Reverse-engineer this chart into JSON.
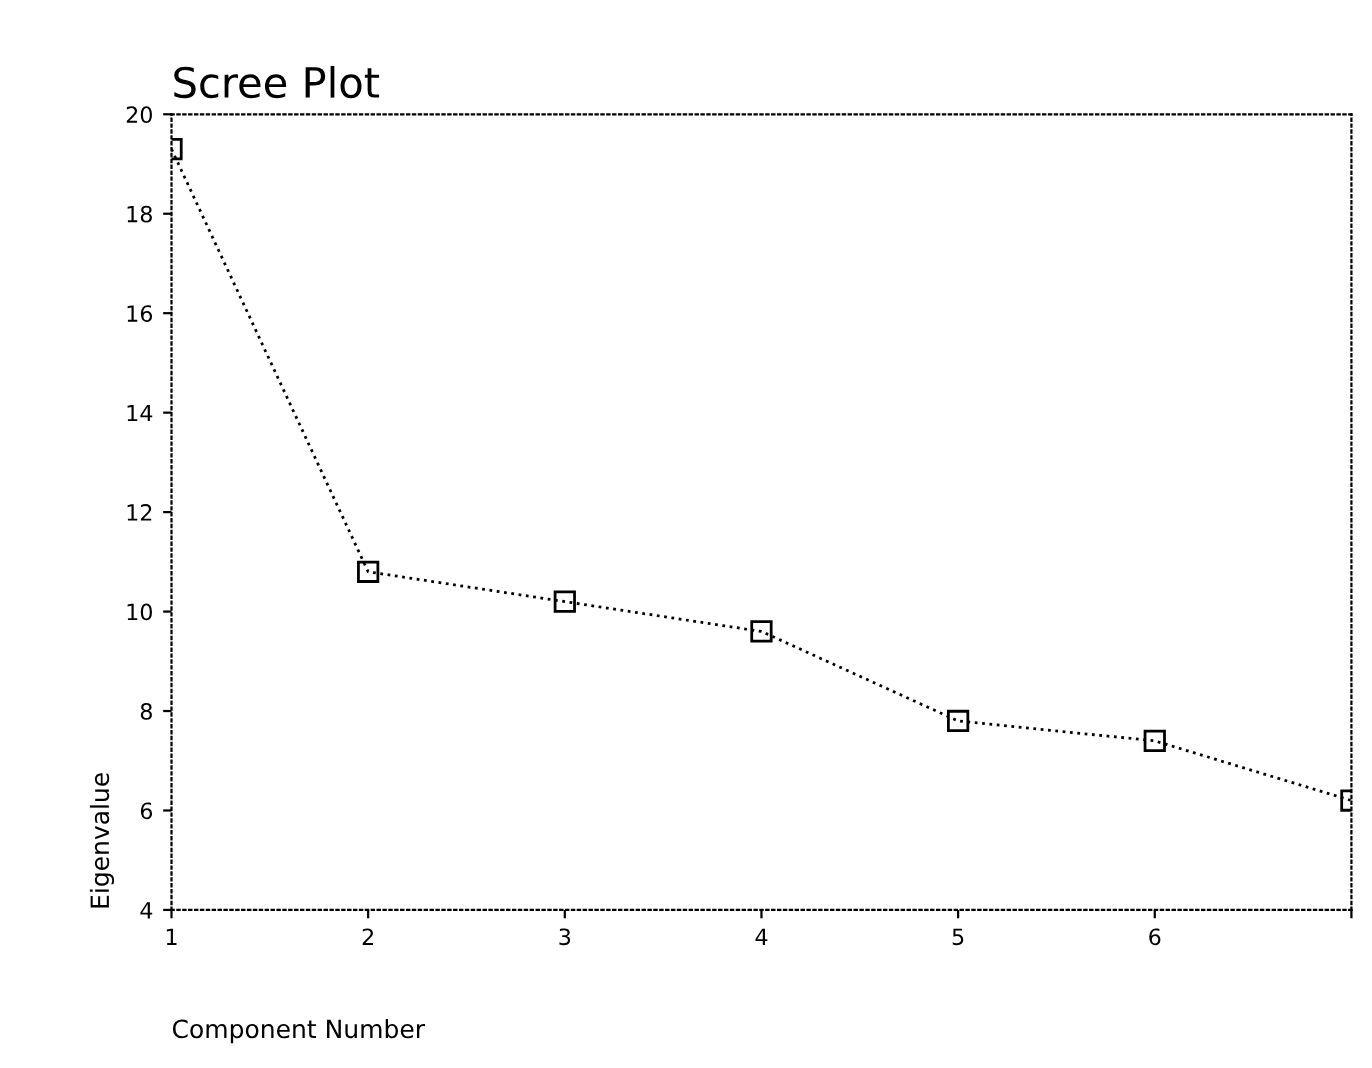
{
  "chart_data": {
    "type": "line",
    "title": "Scree Plot",
    "xlabel": "Component Number",
    "ylabel": "Eigenvalue",
    "x": [
      1,
      2,
      3,
      4,
      5,
      6,
      7
    ],
    "series": [
      {
        "color": "#000000",
        "values": [
          19.3,
          10.8,
          10.2,
          9.6,
          7.8,
          7.4,
          6.2
        ]
      }
    ],
    "xlim": [
      1,
      7
    ],
    "xticks": [
      1,
      2,
      3,
      4,
      5,
      6,
      {
        "value": 7,
        "label": null
      }
    ],
    "ylim": [
      4,
      20
    ],
    "yticks": [
      4,
      6,
      8,
      10,
      12,
      14,
      16,
      18,
      20
    ],
    "marker": "square",
    "line_style": "dotted",
    "grid": false,
    "legend": false
  }
}
